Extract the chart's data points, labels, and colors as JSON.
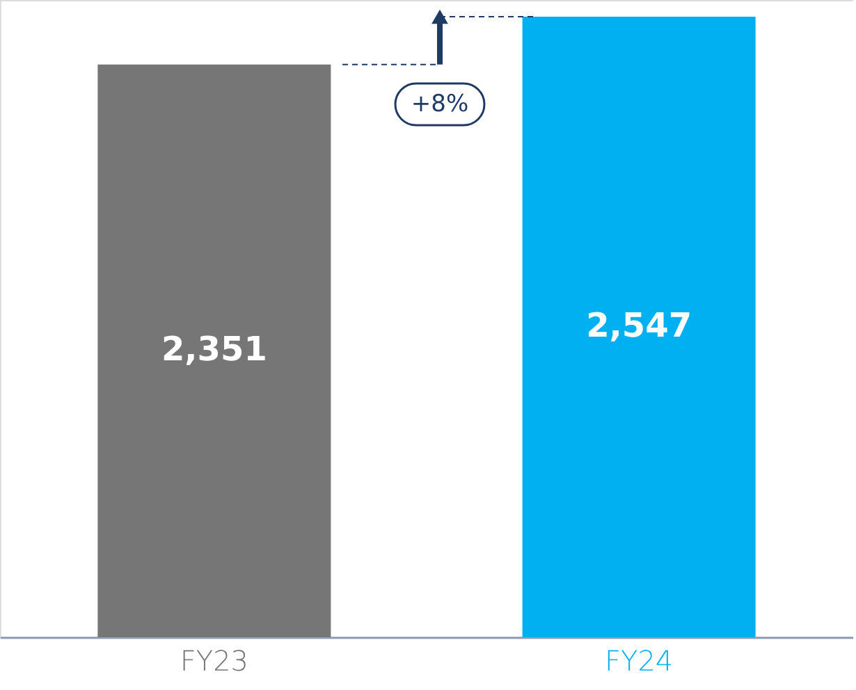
{
  "chart_data": {
    "type": "bar",
    "categories": [
      "FY23",
      "FY24"
    ],
    "values": [
      2351,
      2547
    ],
    "colors": [
      "#767676",
      "#00b0f0"
    ],
    "value_labels": [
      "2,351",
      "2,547"
    ],
    "grid": false,
    "annotations": [
      "+8%"
    ]
  }
}
